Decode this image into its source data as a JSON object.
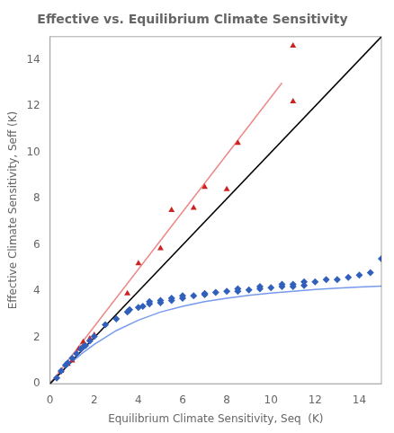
{
  "chart_data": {
    "type": "scatter",
    "title": "Effective vs. Equilibrium Climate Sensitivity",
    "xlabel": "Equilibrium Climate Sensitivity, Seq  (K)",
    "ylabel": "Effective Climate Sensitivity, Seff (K)",
    "xlim": [
      0,
      15
    ],
    "ylim": [
      0,
      15
    ],
    "xticks": [
      0,
      2,
      4,
      6,
      8,
      10,
      12,
      14
    ],
    "yticks": [
      0,
      2,
      4,
      6,
      8,
      10,
      12,
      14
    ],
    "grid": false,
    "series": [
      {
        "type": "line",
        "color": "#000000",
        "marker": "none",
        "line_style": "solid",
        "x": [
          0,
          15
        ],
        "values": [
          0,
          15
        ]
      },
      {
        "type": "line",
        "color": "#ee8888",
        "marker": "none",
        "line_style": "solid",
        "x": [
          0.0,
          10.5
        ],
        "values": [
          0.0,
          13.0
        ]
      },
      {
        "type": "line",
        "color": "#7799ee",
        "marker": "none",
        "line_style": "solid",
        "x": [
          0.0,
          0.5,
          1.0,
          1.5,
          2.0,
          3.0,
          4.0,
          5.0,
          6.0,
          7.0,
          8.0,
          9.0,
          10.0,
          11.0,
          12.0,
          13.0,
          14.0,
          15.0
        ],
        "values": [
          0.05,
          0.5,
          0.95,
          1.35,
          1.7,
          2.3,
          2.75,
          3.1,
          3.35,
          3.55,
          3.7,
          3.82,
          3.92,
          4.0,
          4.07,
          4.13,
          4.18,
          4.22
        ]
      },
      {
        "type": "scatter",
        "color": "#3060bb",
        "marker": "diamond",
        "x": [
          0.3,
          0.5,
          0.7,
          0.8,
          1.0,
          1.2,
          1.4,
          1.5,
          1.6,
          1.8,
          2.0,
          2.5,
          3.0,
          3.5,
          3.6,
          4.0,
          4.2,
          4.5,
          4.5,
          5.0,
          5.0,
          5.5,
          5.5,
          6.0,
          6.0,
          6.5,
          7.0,
          7.0,
          7.5,
          8.0,
          8.5,
          8.5,
          9.0,
          9.5,
          9.5,
          10.0,
          10.5,
          10.5,
          11.0,
          11.0,
          11.5,
          11.5,
          12.0,
          12.5,
          13.0,
          13.5,
          14.0,
          14.5,
          15.0
        ],
        "values": [
          0.25,
          0.55,
          0.8,
          0.9,
          1.1,
          1.3,
          1.5,
          1.6,
          1.65,
          1.85,
          2.05,
          2.55,
          2.8,
          3.1,
          3.2,
          3.3,
          3.35,
          3.45,
          3.55,
          3.5,
          3.6,
          3.6,
          3.7,
          3.7,
          3.8,
          3.8,
          3.85,
          3.9,
          3.95,
          4.0,
          4.0,
          4.1,
          4.05,
          4.1,
          4.2,
          4.15,
          4.2,
          4.3,
          4.2,
          4.3,
          4.25,
          4.4,
          4.4,
          4.5,
          4.5,
          4.6,
          4.7,
          4.8,
          5.4
        ]
      },
      {
        "type": "scatter",
        "color": "#cc2222",
        "marker": "triangle",
        "x": [
          0.5,
          0.8,
          1.0,
          1.3,
          1.5,
          1.8,
          2.0,
          3.5,
          4.0,
          5.0,
          5.5,
          6.5,
          7.0,
          8.0,
          8.5,
          11.0,
          11.0
        ],
        "values": [
          0.55,
          0.85,
          1.0,
          1.5,
          1.8,
          1.95,
          2.1,
          3.9,
          5.2,
          5.85,
          7.5,
          7.6,
          8.5,
          8.4,
          10.4,
          12.2,
          14.6
        ]
      }
    ]
  }
}
